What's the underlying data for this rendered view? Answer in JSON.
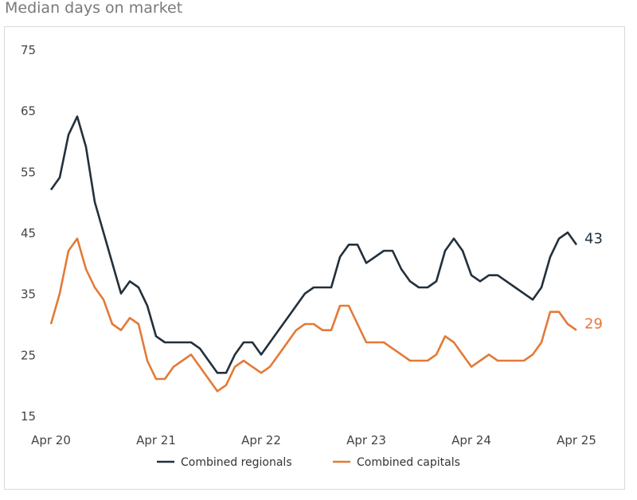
{
  "chart_data": {
    "type": "line",
    "title": "Median days on market",
    "xlabel": "",
    "ylabel": "",
    "ylim": [
      15,
      75
    ],
    "yticks": [
      15,
      25,
      35,
      45,
      55,
      65,
      75
    ],
    "x_start": "Apr 20",
    "x_end": "Apr 25",
    "x_interval": "monthly",
    "xtick_labels": [
      "Apr 20",
      "Apr 21",
      "Apr 22",
      "Apr 23",
      "Apr 24",
      "Apr 25"
    ],
    "grid": false,
    "legend_position": "bottom",
    "series": [
      {
        "name": "Combined regionals",
        "color": "#22303c",
        "end_label": "43",
        "values": [
          52,
          54,
          61,
          64,
          59,
          50,
          45,
          40,
          35,
          37,
          36,
          33,
          28,
          27,
          27,
          27,
          27,
          26,
          24,
          22,
          22,
          25,
          27,
          27,
          25,
          27,
          29,
          31,
          33,
          35,
          36,
          36,
          36,
          41,
          43,
          43,
          40,
          41,
          42,
          42,
          39,
          37,
          36,
          36,
          37,
          42,
          44,
          42,
          38,
          37,
          38,
          38,
          37,
          36,
          35,
          34,
          36,
          41,
          44,
          45,
          43
        ]
      },
      {
        "name": "Combined capitals",
        "color": "#e37a36",
        "end_label": "29",
        "values": [
          30,
          35,
          42,
          44,
          39,
          36,
          34,
          30,
          29,
          31,
          30,
          24,
          21,
          21,
          23,
          24,
          25,
          23,
          21,
          19,
          20,
          23,
          24,
          23,
          22,
          23,
          25,
          27,
          29,
          30,
          30,
          29,
          29,
          33,
          33,
          30,
          27,
          27,
          27,
          26,
          25,
          24,
          24,
          24,
          25,
          28,
          27,
          25,
          23,
          24,
          25,
          24,
          24,
          24,
          24,
          25,
          27,
          32,
          32,
          30,
          29
        ]
      }
    ]
  }
}
